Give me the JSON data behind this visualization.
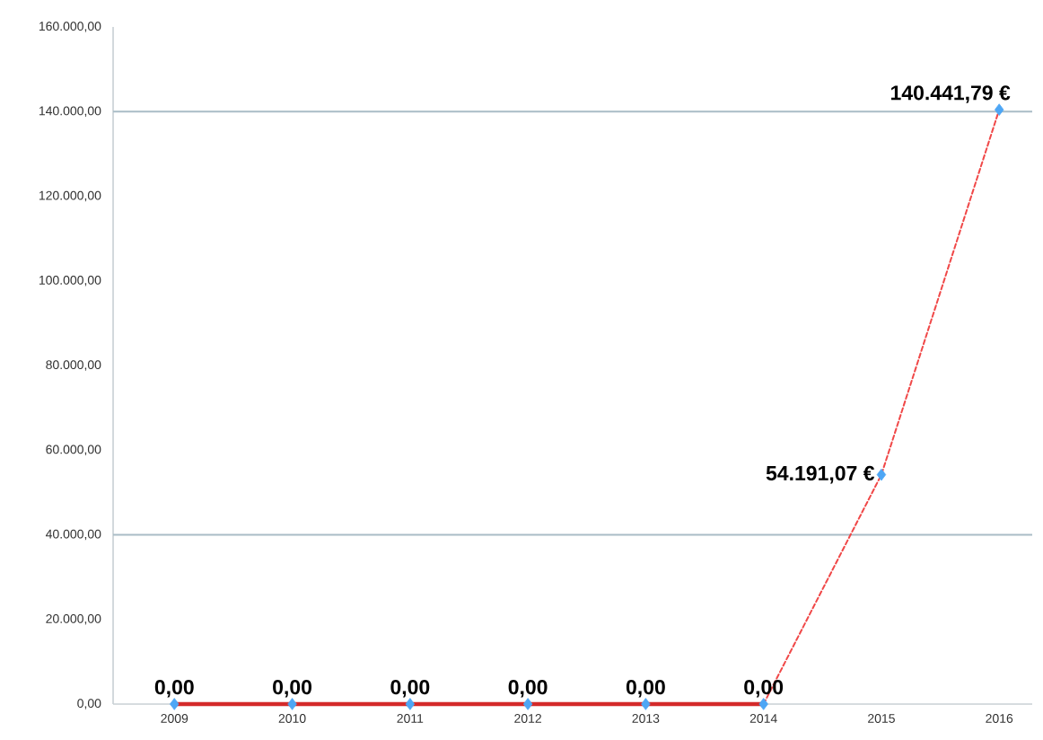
{
  "chart_data": {
    "type": "line",
    "categories": [
      "2009",
      "2010",
      "2011",
      "2012",
      "2013",
      "2014",
      "2015",
      "2016"
    ],
    "series": [
      {
        "color": "#d42a2a",
        "line_style": "solid",
        "values": [
          0,
          0,
          0,
          0,
          0,
          0,
          null,
          null
        ]
      },
      {
        "color": "#f04848",
        "line_style": "dashed",
        "values": [
          null,
          null,
          null,
          null,
          null,
          0,
          54191.07,
          140441.79
        ]
      },
      {
        "type": "scatter",
        "color": "#4da6f5",
        "marker": "diamond",
        "values": [
          0,
          0,
          0,
          0,
          0,
          0,
          54191.07,
          140441.79
        ],
        "value_labels": [
          "0,00",
          "0,00",
          "0,00",
          "0,00",
          "0,00",
          "0,00",
          "54.191,07 €",
          "140.441,79 €"
        ]
      }
    ],
    "ylim": [
      0,
      160000
    ],
    "yticks": [
      {
        "value": 0,
        "label": "0,00"
      },
      {
        "value": 20000,
        "label": "20.000,00"
      },
      {
        "value": 40000,
        "label": "40.000,00"
      },
      {
        "value": 60000,
        "label": "60.000,00"
      },
      {
        "value": 80000,
        "label": "80.000,00"
      },
      {
        "value": 100000,
        "label": "100.000,00"
      },
      {
        "value": 120000,
        "label": "120.000,00"
      },
      {
        "value": 140000,
        "label": "140.000,00"
      },
      {
        "value": 160000,
        "label": "160.000,00"
      }
    ],
    "ref_lines": [
      {
        "axis": "y",
        "value": 40000,
        "color": "#a9bcc6"
      },
      {
        "axis": "y",
        "value": 140000,
        "color": "#a9bcc6"
      }
    ]
  }
}
